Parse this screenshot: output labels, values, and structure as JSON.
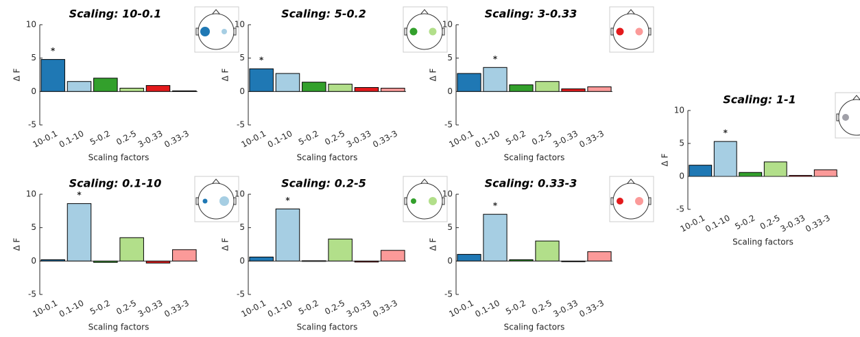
{
  "chart_data": [
    {
      "type": "bar",
      "title": "Scaling: 10-0.1",
      "xlabel": "Scaling factors",
      "ylabel": "Δ F",
      "categories": [
        "10-0.1",
        "0.1-10",
        "5-0.2",
        "0.2-5",
        "3-0.33",
        "0.33-3"
      ],
      "values": [
        4.8,
        1.5,
        2.0,
        0.5,
        0.9,
        0.1
      ],
      "colors": [
        "#1f78b4",
        "#a6cee3",
        "#33a02c",
        "#b2df8a",
        "#e31a1c",
        "#fb9a99"
      ],
      "ylim": [
        -5,
        10
      ],
      "yticks": [
        -5,
        0,
        5,
        10
      ],
      "annotations": [
        {
          "text": "*",
          "category": "10-0.1"
        }
      ]
    },
    {
      "type": "bar",
      "title": "Scaling: 5-0.2",
      "xlabel": "Scaling factors",
      "ylabel": "Δ F",
      "categories": [
        "10-0.1",
        "0.1-10",
        "5-0.2",
        "0.2-5",
        "3-0.33",
        "0.33-3"
      ],
      "values": [
        3.4,
        2.7,
        1.4,
        1.1,
        0.6,
        0.5
      ],
      "colors": [
        "#1f78b4",
        "#a6cee3",
        "#33a02c",
        "#b2df8a",
        "#e31a1c",
        "#fb9a99"
      ],
      "ylim": [
        -5,
        10
      ],
      "yticks": [
        -5,
        0,
        5,
        10
      ],
      "annotations": [
        {
          "text": "*",
          "category": "10-0.1"
        }
      ]
    },
    {
      "type": "bar",
      "title": "Scaling: 3-0.33",
      "xlabel": "Scaling factors",
      "ylabel": "Δ F",
      "categories": [
        "10-0.1",
        "0.1-10",
        "5-0.2",
        "0.2-5",
        "3-0.33",
        "0.33-3"
      ],
      "values": [
        2.7,
        3.6,
        1.0,
        1.5,
        0.4,
        0.7
      ],
      "colors": [
        "#1f78b4",
        "#a6cee3",
        "#33a02c",
        "#b2df8a",
        "#e31a1c",
        "#fb9a99"
      ],
      "ylim": [
        -5,
        10
      ],
      "yticks": [
        -5,
        0,
        5,
        10
      ],
      "annotations": [
        {
          "text": "*",
          "category": "0.1-10"
        }
      ]
    },
    {
      "type": "bar",
      "title": "Scaling: 0.1-10",
      "xlabel": "Scaling factors",
      "ylabel": "Δ F",
      "categories": [
        "10-0.1",
        "0.1-10",
        "5-0.2",
        "0.2-5",
        "3-0.33",
        "0.33-3"
      ],
      "values": [
        0.2,
        8.6,
        -0.2,
        3.5,
        -0.3,
        1.7
      ],
      "colors": [
        "#1f78b4",
        "#a6cee3",
        "#33a02c",
        "#b2df8a",
        "#e31a1c",
        "#fb9a99"
      ],
      "ylim": [
        -5,
        10
      ],
      "yticks": [
        -5,
        0,
        5,
        10
      ],
      "annotations": [
        {
          "text": "*",
          "category": "0.1-10"
        }
      ]
    },
    {
      "type": "bar",
      "title": "Scaling: 0.2-5",
      "xlabel": "Scaling factors",
      "ylabel": "Δ F",
      "categories": [
        "10-0.1",
        "0.1-10",
        "5-0.2",
        "0.2-5",
        "3-0.33",
        "0.33-3"
      ],
      "values": [
        0.6,
        7.8,
        0.05,
        3.3,
        -0.15,
        1.6
      ],
      "colors": [
        "#1f78b4",
        "#a6cee3",
        "#33a02c",
        "#b2df8a",
        "#e31a1c",
        "#fb9a99"
      ],
      "ylim": [
        -5,
        10
      ],
      "yticks": [
        -5,
        0,
        5,
        10
      ],
      "annotations": [
        {
          "text": "*",
          "category": "0.1-10"
        }
      ]
    },
    {
      "type": "bar",
      "title": "Scaling: 0.33-3",
      "xlabel": "Scaling factors",
      "ylabel": "Δ F",
      "categories": [
        "10-0.1",
        "0.1-10",
        "5-0.2",
        "0.2-5",
        "3-0.33",
        "0.33-3"
      ],
      "values": [
        1.0,
        7.0,
        0.2,
        3.0,
        -0.1,
        1.4
      ],
      "colors": [
        "#1f78b4",
        "#a6cee3",
        "#33a02c",
        "#b2df8a",
        "#e31a1c",
        "#fb9a99"
      ],
      "ylim": [
        -5,
        10
      ],
      "yticks": [
        -5,
        0,
        5,
        10
      ],
      "annotations": [
        {
          "text": "*",
          "category": "0.1-10"
        }
      ]
    },
    {
      "type": "bar",
      "title": "Scaling: 1-1",
      "xlabel": "Scaling factors",
      "ylabel": "Δ F",
      "categories": [
        "10-0.1",
        "0.1-10",
        "5-0.2",
        "0.2-5",
        "3-0.33",
        "0.33-3"
      ],
      "values": [
        1.7,
        5.3,
        0.6,
        2.2,
        0.15,
        1.0
      ],
      "colors": [
        "#1f78b4",
        "#a6cee3",
        "#33a02c",
        "#b2df8a",
        "#e31a1c",
        "#fb9a99"
      ],
      "ylim": [
        -5,
        10
      ],
      "yticks": [
        -5,
        0,
        5,
        10
      ],
      "annotations": [
        {
          "text": "*",
          "category": "0.1-10"
        }
      ]
    }
  ]
}
